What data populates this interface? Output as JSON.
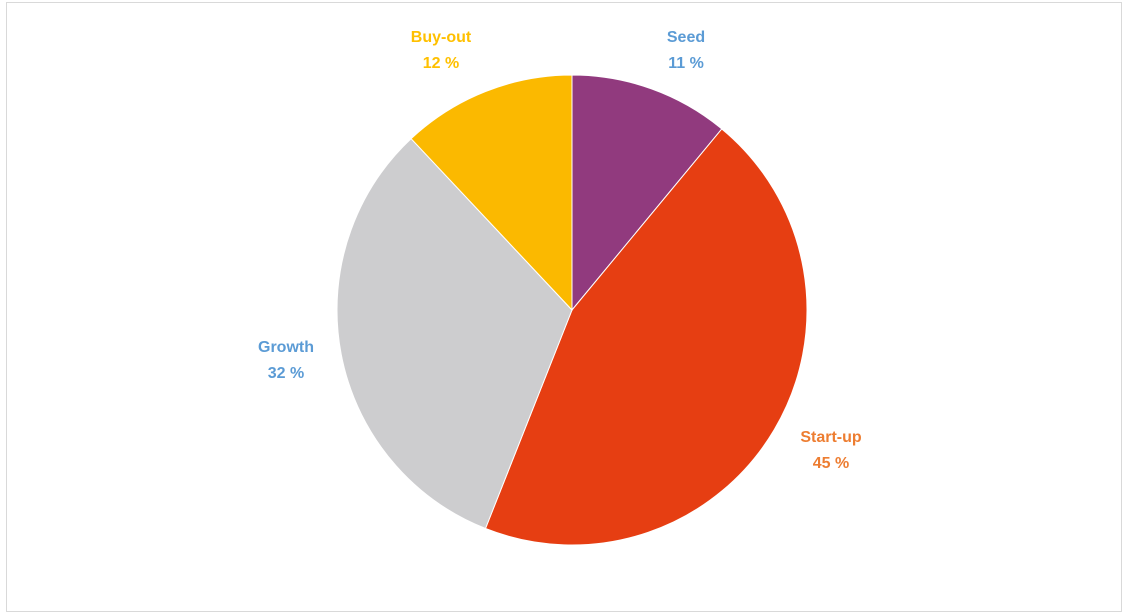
{
  "chart_data": {
    "type": "pie",
    "slices": [
      {
        "name": "Seed",
        "value": 11,
        "value_label": "11 %",
        "color": "#913A7E",
        "label_color": "#5B9BD5"
      },
      {
        "name": "Start-up",
        "value": 45,
        "value_label": "45 %",
        "color": "#E63E12",
        "label_color": "#ED7D31"
      },
      {
        "name": "Growth",
        "value": 32,
        "value_label": "32 %",
        "color": "#CDCDCF",
        "label_color": "#5B9BD5"
      },
      {
        "name": "Buy-out",
        "value": 12,
        "value_label": "12 %",
        "color": "#FBB900",
        "label_color": "#FFC000"
      }
    ],
    "start_angle": "top",
    "direction": "clockwise",
    "legend": "none"
  }
}
